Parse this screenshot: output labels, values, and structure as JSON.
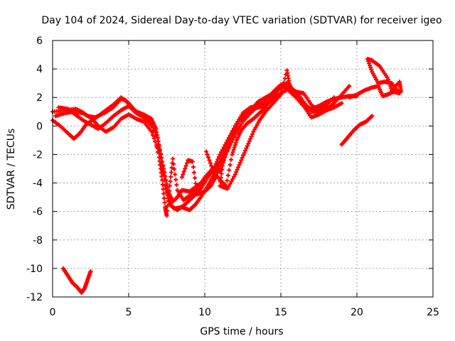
{
  "chart_data": {
    "type": "scatter",
    "title": "Day 104 of 2024, Sidereal Day-to-day VTEC variation (SDTVAR) for receiver igeo",
    "xlabel": "GPS time / hours",
    "ylabel": "SDTVAR / TECUs",
    "xlim": [
      0,
      25
    ],
    "ylim": [
      -12,
      6
    ],
    "xticks": [
      0,
      5,
      10,
      15,
      20,
      25
    ],
    "yticks": [
      -12,
      -10,
      -8,
      -6,
      -4,
      -2,
      0,
      2,
      4,
      6
    ],
    "xtick_labels": [
      "0",
      "5",
      "10",
      "15",
      "20",
      "25"
    ],
    "ytick_labels": [
      "-12",
      "-10",
      "-8",
      "-6",
      "-4",
      "-2",
      "0",
      "2",
      "4",
      "6"
    ],
    "grid": true,
    "marker": "plus",
    "color": "#ff0000",
    "series": [
      {
        "name": "track-a",
        "points": [
          [
            0,
            1.0
          ],
          [
            0.8,
            1.1
          ],
          [
            1.5,
            1.2
          ],
          [
            1.9,
            1.0
          ],
          [
            2.3,
            0.7
          ],
          [
            2.8,
            0.6
          ],
          [
            3.4,
            0.9
          ],
          [
            4.0,
            1.3
          ],
          [
            4.5,
            1.9
          ],
          [
            4.8,
            1.8
          ],
          [
            5.2,
            1.3
          ],
          [
            5.5,
            1.0
          ],
          [
            6.0,
            0.8
          ],
          [
            6.5,
            0.5
          ],
          [
            6.8,
            -0.2
          ],
          [
            7.0,
            -1.5
          ],
          [
            7.3,
            -3.0
          ],
          [
            7.6,
            -4.6
          ],
          [
            7.9,
            -5.3
          ],
          [
            8.2,
            -5.0
          ],
          [
            8.5,
            -4.5
          ],
          [
            9.0,
            -4.6
          ],
          [
            9.5,
            -4.2
          ],
          [
            10.0,
            -3.8
          ],
          [
            10.5,
            -3.2
          ],
          [
            11.0,
            -2.5
          ],
          [
            11.5,
            -1.2
          ],
          [
            12.0,
            0.0
          ],
          [
            12.5,
            0.9
          ],
          [
            13.0,
            1.3
          ],
          [
            13.5,
            1.4
          ],
          [
            14.0,
            1.5
          ],
          [
            14.5,
            2.0
          ],
          [
            15.0,
            2.8
          ],
          [
            15.4,
            3.0
          ],
          [
            15.8,
            2.5
          ],
          [
            16.2,
            1.8
          ],
          [
            16.6,
            1.4
          ],
          [
            17.0,
            1.2
          ],
          [
            17.5,
            1.4
          ],
          [
            18.0,
            1.7
          ],
          [
            18.5,
            1.9
          ],
          [
            19.0,
            2.0
          ],
          [
            19.5,
            2.1
          ],
          [
            20.0,
            2.1
          ]
        ]
      },
      {
        "name": "track-b",
        "points": [
          [
            0,
            0.4
          ],
          [
            0.5,
            0.0
          ],
          [
            1.0,
            -0.5
          ],
          [
            1.4,
            -0.9
          ],
          [
            1.8,
            -0.5
          ],
          [
            2.2,
            0.1
          ],
          [
            2.6,
            0.4
          ],
          [
            3.0,
            0.7
          ],
          [
            3.5,
            1.1
          ],
          [
            4.0,
            1.5
          ],
          [
            4.5,
            2.0
          ],
          [
            5.0,
            1.6
          ],
          [
            5.4,
            1.1
          ],
          [
            6.0,
            0.7
          ],
          [
            6.5,
            0.2
          ],
          [
            6.9,
            -0.8
          ],
          [
            7.2,
            -2.5
          ],
          [
            7.5,
            -4.5
          ],
          [
            7.8,
            -5.6
          ],
          [
            8.2,
            -5.9
          ],
          [
            8.6,
            -5.6
          ],
          [
            9.0,
            -5.2
          ],
          [
            9.4,
            -4.8
          ],
          [
            9.8,
            -4.3
          ],
          [
            10.2,
            -3.6
          ],
          [
            10.6,
            -3.0
          ],
          [
            11.0,
            -2.0
          ],
          [
            11.5,
            -1.0
          ],
          [
            12.0,
            0.0
          ],
          [
            12.5,
            0.6
          ],
          [
            13.0,
            1.1
          ],
          [
            13.5,
            1.7
          ],
          [
            14.0,
            2.0
          ],
          [
            14.5,
            2.3
          ],
          [
            15.0,
            2.7
          ],
          [
            15.5,
            3.0
          ],
          [
            16.0,
            2.2
          ],
          [
            16.5,
            1.5
          ],
          [
            17.0,
            1.0
          ],
          [
            17.5,
            1.0
          ],
          [
            18.0,
            1.2
          ],
          [
            18.5,
            1.6
          ],
          [
            19.0,
            2.2
          ],
          [
            19.5,
            2.8
          ]
        ]
      },
      {
        "name": "track-c",
        "points": [
          [
            0.2,
            0.7
          ],
          [
            0.8,
            0.9
          ],
          [
            1.4,
            1.0
          ],
          [
            2.0,
            0.9
          ],
          [
            2.6,
            0.5
          ],
          [
            3.0,
            0.0
          ],
          [
            3.5,
            -0.4
          ],
          [
            4.0,
            -0.1
          ],
          [
            4.5,
            0.5
          ],
          [
            5.0,
            0.8
          ],
          [
            5.5,
            0.5
          ],
          [
            6.0,
            0.3
          ],
          [
            6.5,
            -0.4
          ],
          [
            7.0,
            -1.8
          ],
          [
            7.4,
            -4.2
          ],
          [
            7.7,
            -5.5
          ],
          [
            8.0,
            -5.8
          ],
          [
            8.5,
            -5.7
          ],
          [
            9.0,
            -5.9
          ],
          [
            9.4,
            -5.5
          ],
          [
            9.8,
            -4.9
          ],
          [
            10.2,
            -4.2
          ],
          [
            10.6,
            -3.4
          ],
          [
            11.0,
            -2.6
          ],
          [
            11.5,
            -1.7
          ],
          [
            12.0,
            -0.6
          ],
          [
            12.5,
            0.3
          ],
          [
            13.0,
            0.9
          ],
          [
            13.5,
            1.4
          ],
          [
            14.0,
            1.8
          ],
          [
            14.5,
            2.4
          ],
          [
            15.0,
            2.9
          ],
          [
            15.5,
            2.5
          ],
          [
            16.0,
            2.0
          ],
          [
            16.5,
            1.4
          ],
          [
            17.0,
            0.6
          ],
          [
            17.5,
            0.8
          ],
          [
            18.0,
            1.1
          ],
          [
            18.5,
            1.3
          ],
          [
            19.0,
            1.6
          ]
        ]
      },
      {
        "name": "track-d",
        "points": [
          [
            0.4,
            1.3
          ],
          [
            1.0,
            1.2
          ],
          [
            1.5,
            0.8
          ],
          [
            2.0,
            0.4
          ],
          [
            2.5,
            0.1
          ],
          [
            3.0,
            -0.2
          ],
          [
            3.5,
            0.2
          ],
          [
            4.0,
            0.7
          ],
          [
            4.5,
            1.1
          ],
          [
            5.0,
            1.4
          ],
          [
            5.5,
            0.9
          ],
          [
            6.0,
            0.6
          ],
          [
            6.5,
            0.0
          ],
          [
            7.0,
            -2.2
          ],
          [
            7.2,
            -3.8
          ],
          [
            7.4,
            -5.7
          ],
          [
            7.5,
            -6.3
          ],
          [
            7.7,
            -4.2
          ],
          [
            7.9,
            -2.3
          ],
          [
            8.2,
            -4.5
          ],
          [
            8.6,
            -5.2
          ],
          [
            9.0,
            -4.9
          ],
          [
            9.5,
            -4.4
          ],
          [
            10.0,
            -3.6
          ],
          [
            10.5,
            -3.0
          ],
          [
            11.0,
            -3.2
          ],
          [
            11.4,
            -2.0
          ],
          [
            11.8,
            -0.8
          ],
          [
            12.2,
            0.3
          ],
          [
            12.6,
            0.8
          ],
          [
            13.0,
            1.1
          ],
          [
            13.5,
            1.3
          ],
          [
            14.0,
            1.4
          ],
          [
            14.5,
            1.9
          ],
          [
            15.0,
            2.3
          ],
          [
            15.5,
            2.6
          ],
          [
            16.0,
            2.4
          ],
          [
            16.5,
            1.7
          ],
          [
            17.0,
            1.0
          ],
          [
            17.5,
            1.1
          ],
          [
            18.0,
            1.5
          ],
          [
            18.5,
            2.0
          ]
        ]
      },
      {
        "name": "track-e",
        "points": [
          [
            8.5,
            -3.6
          ],
          [
            8.9,
            -2.4
          ],
          [
            9.2,
            -2.5
          ],
          [
            9.5,
            -4.8
          ],
          [
            10.0,
            -4.6
          ],
          [
            10.4,
            -4.2
          ],
          [
            10.7,
            -3.6
          ],
          [
            10.9,
            -2.8
          ],
          [
            11.2,
            -2.5
          ],
          [
            11.0,
            -4.2
          ],
          [
            11.5,
            -4.4
          ],
          [
            12.0,
            -3.4
          ],
          [
            12.4,
            -2.4
          ],
          [
            12.8,
            -1.4
          ],
          [
            13.2,
            -0.4
          ],
          [
            13.6,
            0.4
          ],
          [
            14.0,
            1.0
          ],
          [
            14.5,
            1.6
          ],
          [
            15.0,
            2.2
          ],
          [
            15.4,
            3.9
          ],
          [
            15.6,
            2.8
          ],
          [
            16.0,
            2.2
          ],
          [
            16.4,
            1.5
          ]
        ]
      },
      {
        "name": "track-f",
        "points": [
          [
            10.1,
            -1.8
          ],
          [
            10.5,
            -3.0
          ],
          [
            11.0,
            -3.8
          ],
          [
            11.4,
            -4.2
          ],
          [
            11.8,
            -2.0
          ],
          [
            12.1,
            -1.0
          ],
          [
            12.4,
            -0.3
          ],
          [
            12.8,
            0.2
          ],
          [
            13.2,
            0.5
          ],
          [
            13.6,
            0.9
          ],
          [
            14.0,
            1.3
          ],
          [
            14.5,
            2.2
          ],
          [
            15.0,
            2.7
          ],
          [
            15.5,
            2.8
          ],
          [
            16.0,
            2.4
          ],
          [
            16.5,
            2.3
          ],
          [
            17.0,
            1.5
          ],
          [
            17.5,
            1.0
          ],
          [
            18.0,
            1.3
          ],
          [
            18.5,
            1.4
          ]
        ]
      },
      {
        "name": "track-g",
        "points": [
          [
            19.0,
            -1.3
          ],
          [
            19.4,
            -0.8
          ],
          [
            19.8,
            -0.3
          ],
          [
            20.2,
            0.1
          ],
          [
            20.6,
            0.3
          ],
          [
            21.0,
            0.7
          ]
        ]
      },
      {
        "name": "track-h",
        "points": [
          [
            19.5,
            2.0
          ],
          [
            20.0,
            2.2
          ],
          [
            20.5,
            2.5
          ],
          [
            21.0,
            2.7
          ],
          [
            21.4,
            2.8
          ],
          [
            21.7,
            2.1
          ],
          [
            22.0,
            2.2
          ],
          [
            22.4,
            2.4
          ],
          [
            22.8,
            2.3
          ],
          [
            22.3,
            3.0
          ],
          [
            21.8,
            3.1
          ],
          [
            21.4,
            3.0
          ],
          [
            21.0,
            3.8
          ],
          [
            20.7,
            4.7
          ],
          [
            21.0,
            4.6
          ],
          [
            21.5,
            4.2
          ],
          [
            22.0,
            3.4
          ],
          [
            22.3,
            2.5
          ],
          [
            22.8,
            3.1
          ],
          [
            22.9,
            2.4
          ]
        ]
      },
      {
        "name": "track-i",
        "points": [
          [
            0.7,
            -10.0
          ],
          [
            1.0,
            -10.5
          ],
          [
            1.3,
            -11.0
          ],
          [
            1.6,
            -11.3
          ],
          [
            1.9,
            -11.7
          ],
          [
            2.1,
            -11.4
          ],
          [
            2.3,
            -10.8
          ],
          [
            2.5,
            -10.2
          ]
        ]
      }
    ]
  }
}
